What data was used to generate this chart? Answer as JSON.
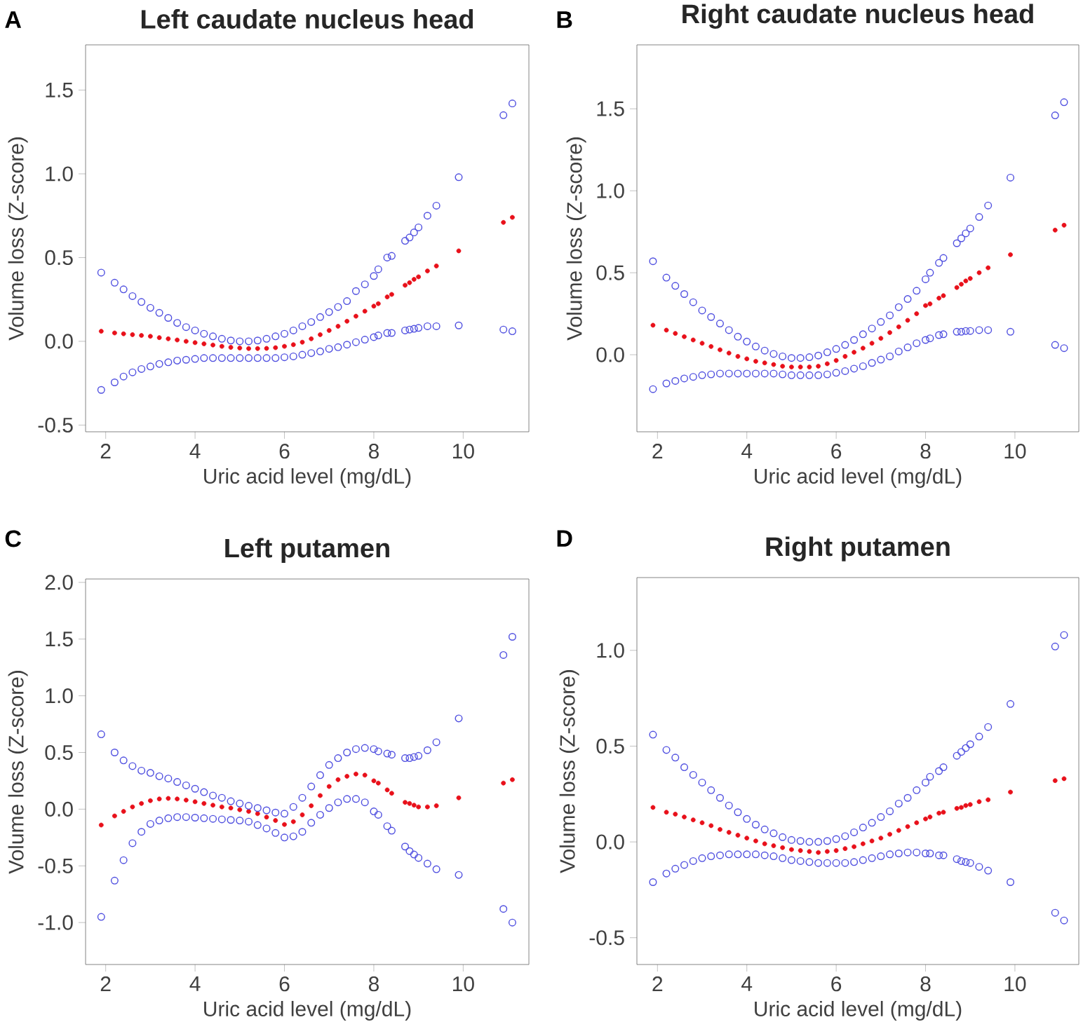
{
  "chart_data": [
    {
      "type": "scatter",
      "title": "Left caudate nucleus head",
      "xlabel": "Uric acid level (mg/dL)",
      "ylabel": "Volume loss (Z-score)",
      "annotations": [
        "A"
      ],
      "marker": "circle",
      "x": [
        1.9,
        2.2,
        2.4,
        2.6,
        2.8,
        3.0,
        3.2,
        3.4,
        3.6,
        3.8,
        4.0,
        4.2,
        4.4,
        4.6,
        4.8,
        5.0,
        5.2,
        5.4,
        5.6,
        5.8,
        6.0,
        6.2,
        6.4,
        6.6,
        6.8,
        7.0,
        7.2,
        7.4,
        7.6,
        7.8,
        8.0,
        8.1,
        8.3,
        8.4,
        8.7,
        8.8,
        8.9,
        9.0,
        9.2,
        9.4,
        9.9,
        10.9,
        11.1
      ],
      "xlim": [
        1.55,
        11.47
      ],
      "xticks": [
        2,
        4,
        6,
        8,
        10
      ],
      "ylim": [
        -0.54,
        1.77
      ],
      "yticks": [
        -0.5,
        {
          "value": 0,
          "label": "0.0"
        },
        0.5,
        {
          "value": 1,
          "label": "1.0"
        },
        1.5
      ],
      "series": [
        {
          "color": "#e8101a",
          "values": [
            0.06,
            0.05,
            0.045,
            0.04,
            0.035,
            0.03,
            0.022,
            0.015,
            0.008,
            0,
            -0.008,
            -0.015,
            -0.022,
            -0.03,
            -0.036,
            -0.04,
            -0.043,
            -0.043,
            -0.042,
            -0.038,
            -0.03,
            -0.02,
            -0.005,
            0.015,
            0.04,
            0.065,
            0.09,
            0.12,
            0.15,
            0.18,
            0.21,
            0.225,
            0.265,
            0.28,
            0.335,
            0.35,
            0.37,
            0.385,
            0.42,
            0.45,
            0.54,
            0.71,
            0.74
          ]
        },
        {
          "color": "#5050e0",
          "values": [
            0.41,
            0.35,
            0.31,
            0.27,
            0.235,
            0.2,
            0.17,
            0.14,
            0.11,
            0.085,
            0.065,
            0.045,
            0.03,
            0.015,
            0.005,
            0,
            0,
            0.005,
            0.015,
            0.03,
            0.045,
            0.065,
            0.09,
            0.115,
            0.145,
            0.175,
            0.205,
            0.24,
            0.3,
            0.34,
            0.39,
            0.43,
            0.5,
            0.51,
            0.6,
            0.62,
            0.65,
            0.68,
            0.75,
            0.81,
            0.98,
            1.35,
            1.42
          ]
        },
        {
          "color": "#5050e0",
          "values": [
            -0.29,
            -0.245,
            -0.21,
            -0.185,
            -0.165,
            -0.15,
            -0.135,
            -0.125,
            -0.115,
            -0.11,
            -0.105,
            -0.1,
            -0.1,
            -0.1,
            -0.1,
            -0.1,
            -0.1,
            -0.1,
            -0.1,
            -0.1,
            -0.095,
            -0.09,
            -0.08,
            -0.07,
            -0.06,
            -0.045,
            -0.035,
            -0.02,
            -0.005,
            0.01,
            0.025,
            0.035,
            0.05,
            0.05,
            0.065,
            0.07,
            0.075,
            0.08,
            0.09,
            0.09,
            0.095,
            0.07,
            0.06
          ]
        }
      ]
    },
    {
      "type": "scatter",
      "title": "Right caudate nucleus head",
      "xlabel": "Uric acid level (mg/dL)",
      "ylabel": "Volume loss (Z-score)",
      "annotations": [
        "B"
      ],
      "marker": "circle",
      "x": [
        1.9,
        2.2,
        2.4,
        2.6,
        2.8,
        3.0,
        3.2,
        3.4,
        3.6,
        3.8,
        4.0,
        4.2,
        4.4,
        4.6,
        4.8,
        5.0,
        5.2,
        5.4,
        5.6,
        5.8,
        6.0,
        6.2,
        6.4,
        6.6,
        6.8,
        7.0,
        7.2,
        7.4,
        7.6,
        7.8,
        8.0,
        8.1,
        8.3,
        8.4,
        8.7,
        8.8,
        8.9,
        9.0,
        9.2,
        9.4,
        9.9,
        10.9,
        11.1
      ],
      "xlim": [
        1.54,
        11.43
      ],
      "xticks": [
        2,
        4,
        6,
        8,
        10
      ],
      "ylim": [
        -0.47,
        1.89
      ],
      "yticks": [
        {
          "value": 0,
          "label": "0.0"
        },
        0.5,
        {
          "value": 1,
          "label": "1.0"
        },
        1.5
      ],
      "series": [
        {
          "color": "#e8101a",
          "values": [
            0.18,
            0.15,
            0.13,
            0.11,
            0.09,
            0.07,
            0.05,
            0.03,
            0.01,
            -0.01,
            -0.025,
            -0.04,
            -0.05,
            -0.06,
            -0.07,
            -0.075,
            -0.075,
            -0.075,
            -0.07,
            -0.055,
            -0.035,
            -0.01,
            0.015,
            0.04,
            0.07,
            0.1,
            0.135,
            0.17,
            0.21,
            0.25,
            0.3,
            0.31,
            0.345,
            0.36,
            0.41,
            0.43,
            0.45,
            0.465,
            0.5,
            0.53,
            0.61,
            0.76,
            0.79
          ]
        },
        {
          "color": "#5050e0",
          "values": [
            0.57,
            0.47,
            0.42,
            0.37,
            0.32,
            0.27,
            0.23,
            0.19,
            0.15,
            0.11,
            0.08,
            0.05,
            0.025,
            0.005,
            -0.01,
            -0.02,
            -0.02,
            -0.015,
            -0.005,
            0.015,
            0.035,
            0.06,
            0.09,
            0.125,
            0.16,
            0.2,
            0.24,
            0.29,
            0.34,
            0.39,
            0.46,
            0.5,
            0.56,
            0.59,
            0.68,
            0.71,
            0.74,
            0.77,
            0.84,
            0.91,
            1.08,
            1.46,
            1.54
          ]
        },
        {
          "color": "#5050e0",
          "values": [
            -0.21,
            -0.175,
            -0.16,
            -0.145,
            -0.135,
            -0.125,
            -0.12,
            -0.115,
            -0.115,
            -0.115,
            -0.115,
            -0.115,
            -0.115,
            -0.115,
            -0.12,
            -0.125,
            -0.125,
            -0.125,
            -0.125,
            -0.12,
            -0.11,
            -0.1,
            -0.085,
            -0.07,
            -0.05,
            -0.03,
            -0.01,
            0.02,
            0.045,
            0.07,
            0.09,
            0.1,
            0.12,
            0.125,
            0.14,
            0.14,
            0.145,
            0.145,
            0.15,
            0.15,
            0.14,
            0.06,
            0.04
          ]
        }
      ]
    },
    {
      "type": "scatter",
      "title": "Left putamen",
      "xlabel": "Uric acid level (mg/dL)",
      "ylabel": "Volume loss (Z-score)",
      "annotations": [
        "C"
      ],
      "marker": "circle",
      "x": [
        1.9,
        2.2,
        2.4,
        2.6,
        2.8,
        3.0,
        3.2,
        3.4,
        3.6,
        3.8,
        4.0,
        4.2,
        4.4,
        4.6,
        4.8,
        5.0,
        5.2,
        5.4,
        5.6,
        5.8,
        6.0,
        6.2,
        6.4,
        6.6,
        6.8,
        7.0,
        7.2,
        7.4,
        7.6,
        7.8,
        8.0,
        8.1,
        8.3,
        8.4,
        8.7,
        8.8,
        8.9,
        9.0,
        9.2,
        9.4,
        9.9,
        10.9,
        11.1
      ],
      "xlim": [
        1.55,
        11.47
      ],
      "xticks": [
        2,
        4,
        6,
        8,
        10
      ],
      "ylim": [
        -1.37,
        2.03
      ],
      "yticks": [
        {
          "value": -1,
          "label": "-1.0"
        },
        -0.5,
        {
          "value": 0,
          "label": "0.0"
        },
        0.5,
        {
          "value": 1,
          "label": "1.0"
        },
        1.5,
        {
          "value": 2,
          "label": "2.0"
        }
      ],
      "series": [
        {
          "color": "#e8101a",
          "values": [
            -0.14,
            -0.06,
            -0.02,
            0.02,
            0.05,
            0.075,
            0.09,
            0.095,
            0.09,
            0.08,
            0.065,
            0.05,
            0.035,
            0.02,
            0.01,
            -0.005,
            -0.02,
            -0.04,
            -0.07,
            -0.1,
            -0.135,
            -0.11,
            -0.05,
            0.03,
            0.12,
            0.2,
            0.26,
            0.29,
            0.31,
            0.3,
            0.25,
            0.23,
            0.17,
            0.14,
            0.06,
            0.05,
            0.035,
            0.02,
            0.02,
            0.03,
            0.1,
            0.23,
            0.26
          ]
        },
        {
          "color": "#5050e0",
          "values": [
            0.66,
            0.5,
            0.43,
            0.38,
            0.34,
            0.32,
            0.29,
            0.27,
            0.24,
            0.21,
            0.18,
            0.15,
            0.12,
            0.1,
            0.07,
            0.05,
            0.03,
            0.01,
            -0.01,
            -0.03,
            -0.04,
            0.02,
            0.1,
            0.2,
            0.3,
            0.39,
            0.45,
            0.5,
            0.53,
            0.54,
            0.53,
            0.51,
            0.49,
            0.48,
            0.45,
            0.45,
            0.46,
            0.47,
            0.52,
            0.59,
            0.8,
            1.36,
            1.52
          ]
        },
        {
          "color": "#5050e0",
          "values": [
            -0.95,
            -0.63,
            -0.45,
            -0.3,
            -0.2,
            -0.13,
            -0.1,
            -0.08,
            -0.07,
            -0.07,
            -0.075,
            -0.08,
            -0.085,
            -0.09,
            -0.095,
            -0.1,
            -0.11,
            -0.14,
            -0.17,
            -0.21,
            -0.25,
            -0.24,
            -0.2,
            -0.12,
            -0.05,
            0.01,
            0.06,
            0.09,
            0.09,
            0.06,
            -0.02,
            -0.05,
            -0.15,
            -0.19,
            -0.33,
            -0.37,
            -0.4,
            -0.43,
            -0.48,
            -0.53,
            -0.58,
            -0.88,
            -1.0
          ]
        }
      ]
    },
    {
      "type": "scatter",
      "title": "Right putamen",
      "xlabel": "Uric acid level (mg/dL)",
      "ylabel": "Volume loss (Z-score)",
      "annotations": [
        "D"
      ],
      "marker": "circle",
      "x": [
        1.9,
        2.2,
        2.4,
        2.6,
        2.8,
        3.0,
        3.2,
        3.4,
        3.6,
        3.8,
        4.0,
        4.2,
        4.4,
        4.6,
        4.8,
        5.0,
        5.2,
        5.4,
        5.6,
        5.8,
        6.0,
        6.2,
        6.4,
        6.6,
        6.8,
        7.0,
        7.2,
        7.4,
        7.6,
        7.8,
        8.0,
        8.1,
        8.3,
        8.4,
        8.7,
        8.8,
        8.9,
        9.0,
        9.2,
        9.4,
        9.9,
        10.9,
        11.1
      ],
      "xlim": [
        1.54,
        11.43
      ],
      "xticks": [
        2,
        4,
        6,
        8,
        10
      ],
      "ylim": [
        -0.64,
        1.38
      ],
      "yticks": [
        -0.5,
        {
          "value": 0,
          "label": "0.0"
        },
        0.5,
        {
          "value": 1,
          "label": "1.0"
        }
      ],
      "series": [
        {
          "color": "#e8101a",
          "values": [
            0.18,
            0.155,
            0.145,
            0.13,
            0.115,
            0.1,
            0.085,
            0.065,
            0.05,
            0.035,
            0.02,
            0.005,
            -0.01,
            -0.02,
            -0.03,
            -0.04,
            -0.045,
            -0.05,
            -0.055,
            -0.05,
            -0.045,
            -0.035,
            -0.025,
            -0.01,
            0.005,
            0.02,
            0.04,
            0.06,
            0.08,
            0.1,
            0.12,
            0.13,
            0.15,
            0.155,
            0.175,
            0.18,
            0.19,
            0.195,
            0.21,
            0.22,
            0.26,
            0.32,
            0.33
          ]
        },
        {
          "color": "#5050e0",
          "values": [
            0.56,
            0.48,
            0.44,
            0.39,
            0.35,
            0.31,
            0.27,
            0.23,
            0.19,
            0.155,
            0.12,
            0.09,
            0.065,
            0.045,
            0.025,
            0.01,
            0.005,
            0,
            0,
            0.005,
            0.015,
            0.03,
            0.05,
            0.075,
            0.1,
            0.13,
            0.16,
            0.2,
            0.23,
            0.27,
            0.31,
            0.34,
            0.37,
            0.39,
            0.45,
            0.47,
            0.49,
            0.51,
            0.55,
            0.6,
            0.72,
            1.02,
            1.08
          ]
        },
        {
          "color": "#5050e0",
          "values": [
            -0.21,
            -0.165,
            -0.14,
            -0.12,
            -0.1,
            -0.085,
            -0.075,
            -0.07,
            -0.065,
            -0.065,
            -0.065,
            -0.065,
            -0.07,
            -0.075,
            -0.085,
            -0.095,
            -0.1,
            -0.105,
            -0.11,
            -0.11,
            -0.11,
            -0.11,
            -0.105,
            -0.095,
            -0.085,
            -0.075,
            -0.065,
            -0.06,
            -0.055,
            -0.055,
            -0.06,
            -0.06,
            -0.07,
            -0.07,
            -0.09,
            -0.1,
            -0.105,
            -0.11,
            -0.13,
            -0.15,
            -0.21,
            -0.37,
            -0.41
          ]
        }
      ]
    }
  ]
}
